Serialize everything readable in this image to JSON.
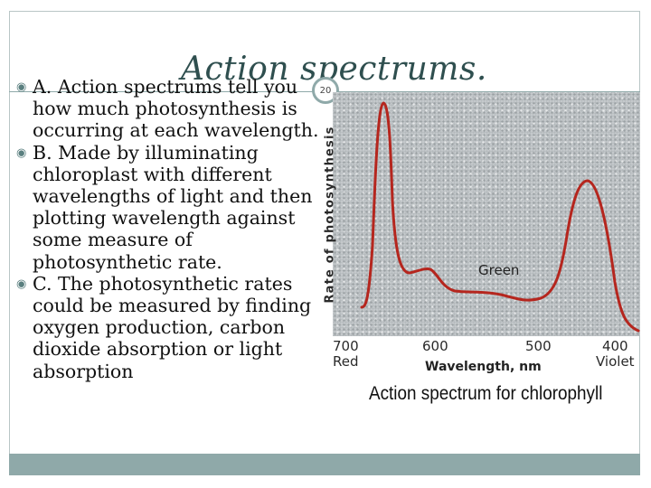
{
  "slide": {
    "title": "Action spectrums.",
    "slide_number": "20"
  },
  "bullets": [
    {
      "text": "A. Action spectrums tell you how much photosynthesis is occurring at each wavelength."
    },
    {
      "text": "B. Made by illuminating chloroplast with different wavelengths of light and then plotting wavelength against some measure of photosynthetic rate."
    },
    {
      "text": "C. The photosynthetic rates could be measured by finding oxygen production, carbon dioxide absorption or light absorption"
    }
  ],
  "figure": {
    "y_axis_label": "Rate of photosynthesis",
    "region_label": "Green",
    "x_ticks": [
      "700",
      "600",
      "500",
      "400"
    ],
    "x_tick_sublabels": {
      "700": "Red",
      "400": "Violet"
    },
    "x_axis_label": "Wavelength, nm",
    "caption": "Action spectrum for chlorophyll",
    "curve_color": "#b5261e"
  }
}
